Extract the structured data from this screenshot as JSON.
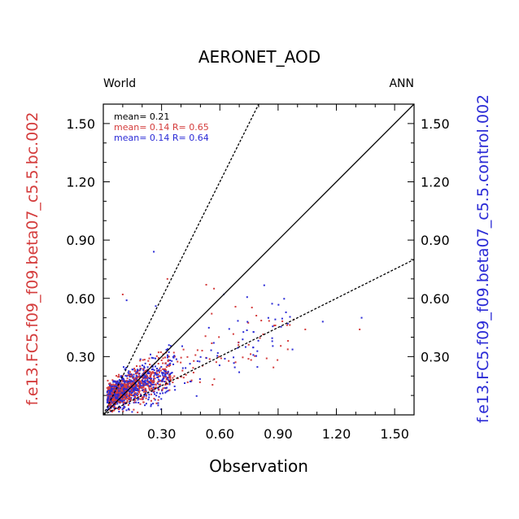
{
  "chart_data": {
    "type": "scatter",
    "title": "AERONET_AOD",
    "subtitle_left": "World",
    "subtitle_right": "ANN",
    "xlabel": "Observation",
    "ylabel_left": "f.e13.FC5.f09_f09.beta07_c5.5.bc.002",
    "ylabel_right": "f.e13.FC5.f09_f09.beta07_c5.5.control.002",
    "xlim": [
      0.0,
      1.6
    ],
    "ylim": [
      0.0,
      1.6
    ],
    "x_ticks": [
      "0.30",
      "0.60",
      "0.90",
      "1.20",
      "1.50"
    ],
    "y_ticks": [
      "0.30",
      "0.60",
      "0.90",
      "1.20",
      "1.50"
    ],
    "tick_values": [
      0.3,
      0.6,
      0.9,
      1.2,
      1.5
    ],
    "annotations": [
      {
        "text": "mean= 0.21",
        "color": "#000000"
      },
      {
        "text": "mean= 0.14 R= 0.65",
        "color": "#d43c3c"
      },
      {
        "text": "mean= 0.14 R= 0.64",
        "color": "#2b2bd6"
      }
    ],
    "reference_lines": [
      {
        "slope": 1.0,
        "style": "solid"
      },
      {
        "slope": 2.0,
        "style": "dashed"
      },
      {
        "slope": 0.5,
        "style": "dashed"
      }
    ],
    "series": [
      {
        "color": "#d43c3c",
        "mean": 0.14,
        "R": 0.65
      },
      {
        "color": "#2b2bd6",
        "mean": 0.14,
        "R": 0.64
      }
    ],
    "outliers": [
      {
        "x": 0.26,
        "y": 0.84,
        "series": 1
      },
      {
        "x": 0.27,
        "y": 0.56,
        "series": 1
      },
      {
        "x": 0.1,
        "y": 0.62,
        "series": 0
      },
      {
        "x": 0.12,
        "y": 0.59,
        "series": 1
      },
      {
        "x": 0.33,
        "y": 0.7,
        "series": 0
      },
      {
        "x": 0.53,
        "y": 0.67,
        "series": 0
      },
      {
        "x": 0.57,
        "y": 0.65,
        "series": 0
      },
      {
        "x": 0.62,
        "y": 0.62,
        "series": 1
      },
      {
        "x": 1.04,
        "y": 0.44,
        "series": 0
      },
      {
        "x": 1.13,
        "y": 0.48,
        "series": 1
      },
      {
        "x": 1.33,
        "y": 0.5,
        "series": 1
      },
      {
        "x": 1.32,
        "y": 0.44,
        "series": 0
      },
      {
        "x": 0.95,
        "y": 0.47,
        "series": 1
      },
      {
        "x": 0.88,
        "y": 0.46,
        "series": 0
      }
    ],
    "grid": false
  },
  "colors": {
    "red": "#d43c3c",
    "blue": "#2b2bd6",
    "axis": "#000000"
  }
}
